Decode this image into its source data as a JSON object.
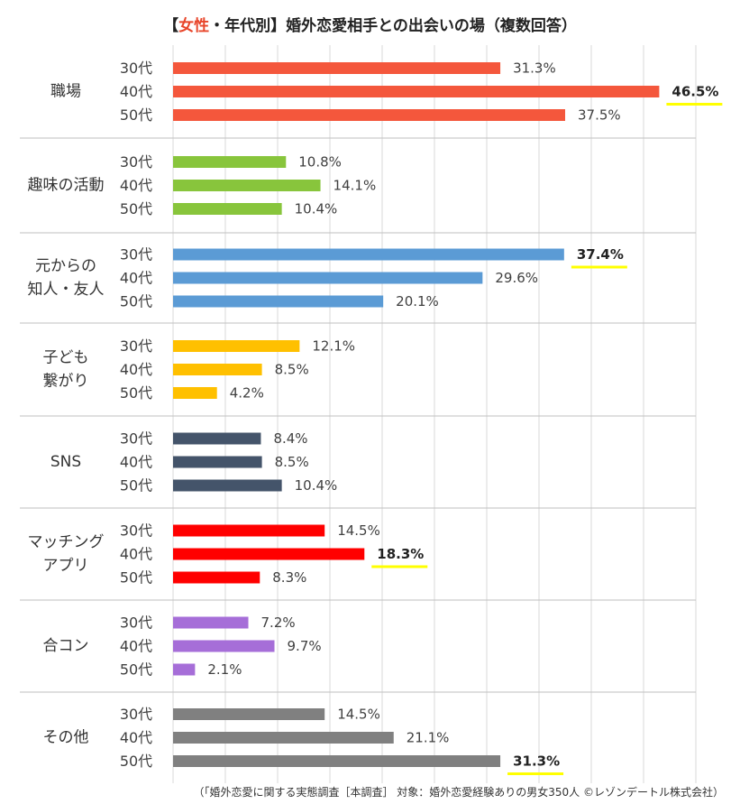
{
  "title": {
    "open": "【",
    "highlight": "女性",
    "rest": "・年代別】婚外恋愛相手との出会いの場（複数回答）"
  },
  "source": "（「婚外恋愛に関する実態調査［本調査］ 対象：婚外恋愛経験ありの男女350人 ©レゾンデートル株式会社）",
  "chart_data": {
    "type": "bar",
    "orientation": "horizontal",
    "xlim": [
      0,
      50
    ],
    "grid": true,
    "value_suffix": "%",
    "groups": [
      {
        "label": [
          "職場"
        ],
        "color": "#F4573C",
        "items": [
          {
            "age": "30代",
            "value": 31.3
          },
          {
            "age": "40代",
            "value": 46.5,
            "emphasis": true
          },
          {
            "age": "50代",
            "value": 37.5
          }
        ]
      },
      {
        "label": [
          "趣味の活動"
        ],
        "color": "#88C53C",
        "items": [
          {
            "age": "30代",
            "value": 10.8
          },
          {
            "age": "40代",
            "value": 14.1
          },
          {
            "age": "50代",
            "value": 10.4
          }
        ]
      },
      {
        "label": [
          "元からの",
          "知人・友人"
        ],
        "color": "#5B9BD5",
        "items": [
          {
            "age": "30代",
            "value": 37.4,
            "emphasis": true
          },
          {
            "age": "40代",
            "value": 29.6
          },
          {
            "age": "50代",
            "value": 20.1
          }
        ]
      },
      {
        "label": [
          "子ども",
          "繋がり"
        ],
        "color": "#FFC000",
        "items": [
          {
            "age": "30代",
            "value": 12.1
          },
          {
            "age": "40代",
            "value": 8.5
          },
          {
            "age": "50代",
            "value": 4.2
          }
        ]
      },
      {
        "label": [
          "SNS"
        ],
        "color": "#44546A",
        "items": [
          {
            "age": "30代",
            "value": 8.4
          },
          {
            "age": "40代",
            "value": 8.5
          },
          {
            "age": "50代",
            "value": 10.4
          }
        ]
      },
      {
        "label": [
          "マッチング",
          "アプリ"
        ],
        "color": "#FF0000",
        "items": [
          {
            "age": "30代",
            "value": 14.5
          },
          {
            "age": "40代",
            "value": 18.3,
            "emphasis": true
          },
          {
            "age": "50代",
            "value": 8.3
          }
        ]
      },
      {
        "label": [
          "合コン"
        ],
        "color": "#A66ED8",
        "items": [
          {
            "age": "30代",
            "value": 7.2
          },
          {
            "age": "40代",
            "value": 9.7
          },
          {
            "age": "50代",
            "value": 2.1
          }
        ]
      },
      {
        "label": [
          "その他"
        ],
        "color": "#808080",
        "items": [
          {
            "age": "30代",
            "value": 14.5
          },
          {
            "age": "40代",
            "value": 21.1
          },
          {
            "age": "50代",
            "value": 31.3,
            "emphasis": true
          }
        ]
      }
    ],
    "emphasis_underline_color": "#FFFF00"
  }
}
